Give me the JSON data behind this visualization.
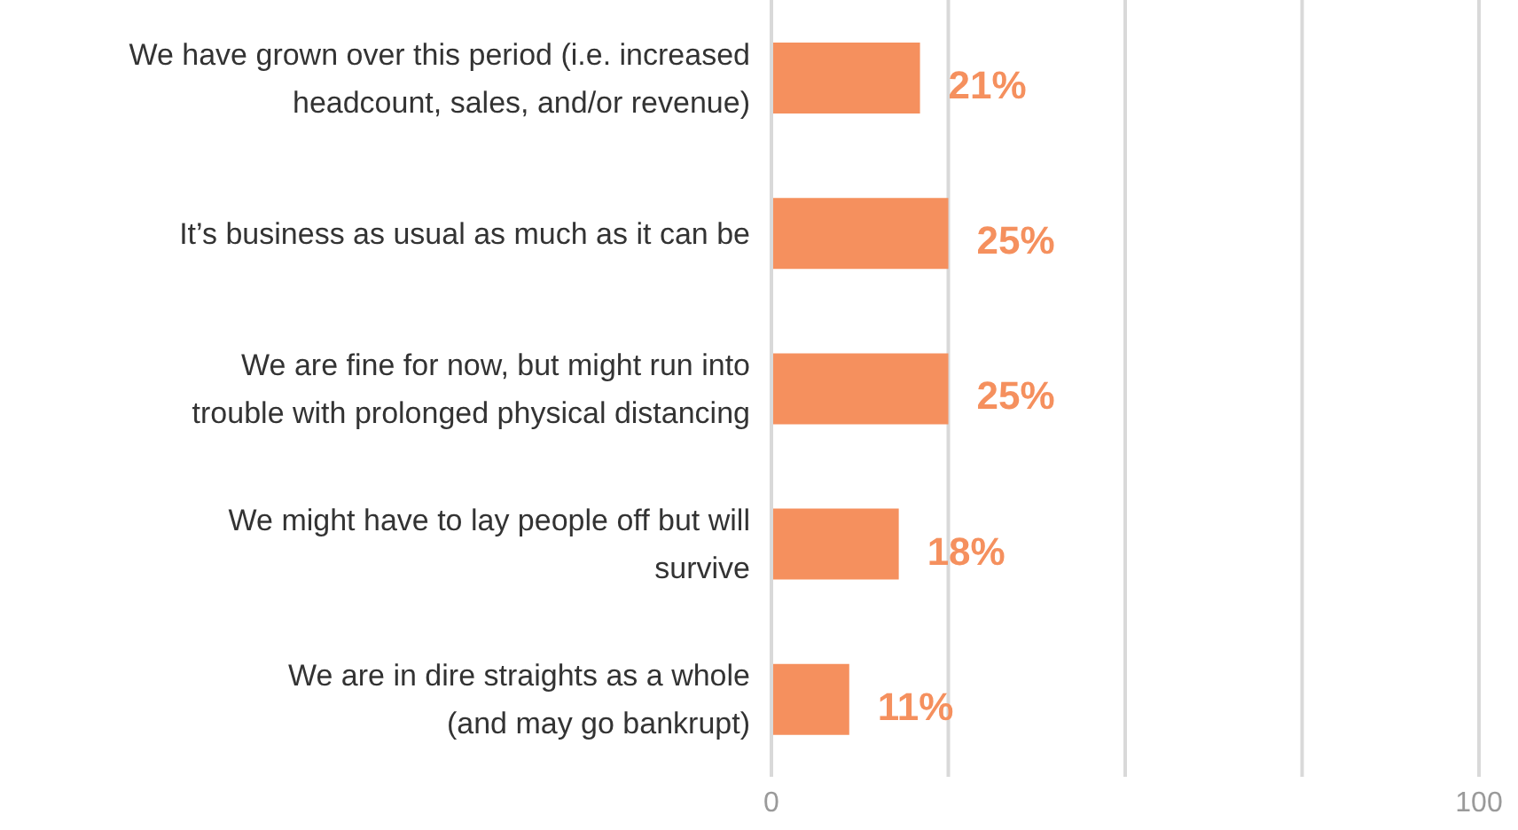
{
  "chart_data": {
    "type": "bar",
    "orientation": "horizontal",
    "categories": [
      "We have grown over this period (i.e. increased\nheadcount, sales, and/or revenue)",
      "It’s business as usual as much as it can be",
      "We are fine for now, but might run into\ntrouble with prolonged physical distancing",
      "We might have to lay people off but will\nsurvive",
      "We are in dire straights as a whole\n(and may go bankrupt)"
    ],
    "values": [
      21,
      25,
      25,
      18,
      11
    ],
    "value_labels": [
      "21%",
      "25%",
      "25%",
      "18%",
      "11%"
    ],
    "color": "#f5905e",
    "xlim": [
      0,
      100
    ],
    "xticks": [
      0,
      {
        "value": 25,
        "label": null
      },
      {
        "value": 50,
        "label": null
      },
      {
        "value": 75,
        "label": null
      },
      100
    ],
    "grid": "x",
    "legend": false
  }
}
